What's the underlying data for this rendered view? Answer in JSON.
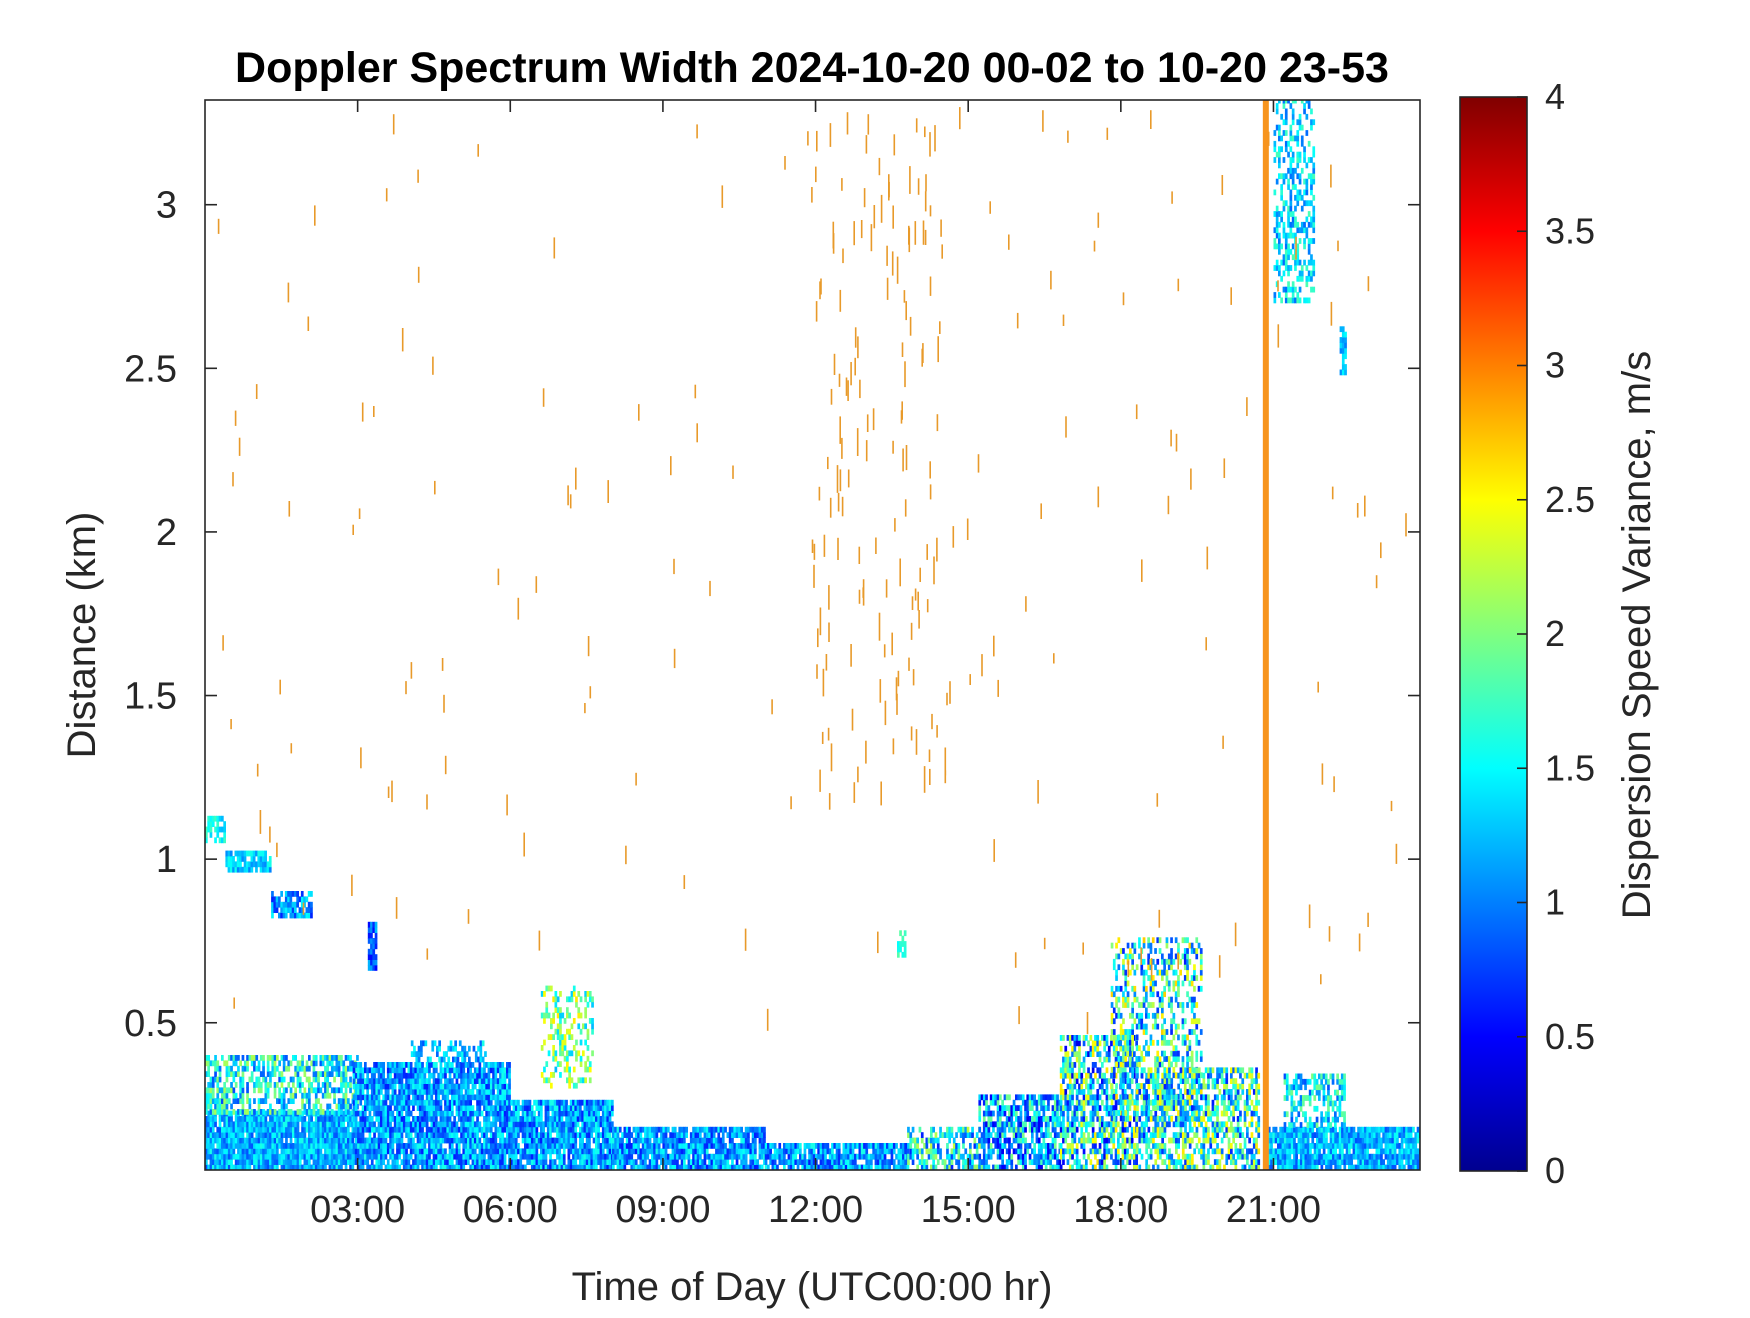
{
  "chart_data": {
    "type": "heatmap",
    "title": "Doppler Spectrum Width 2024-10-20 00-02 to 10-20 23-53",
    "xlabel": "Time of Day (UTC00:00 hr)",
    "ylabel": "Distance (km)",
    "xlim_hours": [
      0.0,
      23.88
    ],
    "ylim_km": [
      0.05,
      3.32
    ],
    "x_ticks": [
      {
        "hour": 3,
        "label": "03:00"
      },
      {
        "hour": 6,
        "label": "06:00"
      },
      {
        "hour": 9,
        "label": "09:00"
      },
      {
        "hour": 12,
        "label": "12:00"
      },
      {
        "hour": 15,
        "label": "15:00"
      },
      {
        "hour": 18,
        "label": "18:00"
      },
      {
        "hour": 21,
        "label": "21:00"
      }
    ],
    "y_ticks": [
      {
        "value": 0.5,
        "label": "0.5"
      },
      {
        "value": 1,
        "label": "1"
      },
      {
        "value": 1.5,
        "label": "1.5"
      },
      {
        "value": 2,
        "label": "2"
      },
      {
        "value": 2.5,
        "label": "2.5"
      },
      {
        "value": 3,
        "label": "3"
      }
    ],
    "colorbar": {
      "label": "Dispersion Speed Variance, m/s",
      "range": [
        0,
        4
      ],
      "colormap": "jet",
      "ticks": [
        {
          "value": 0,
          "label": "0"
        },
        {
          "value": 0.5,
          "label": "0.5"
        },
        {
          "value": 1,
          "label": "1"
        },
        {
          "value": 1.5,
          "label": "1.5"
        },
        {
          "value": 2,
          "label": "2"
        },
        {
          "value": 2.5,
          "label": "2.5"
        },
        {
          "value": 3,
          "label": "3"
        },
        {
          "value": 3.5,
          "label": "3.5"
        },
        {
          "value": 4,
          "label": "4"
        }
      ]
    },
    "marker_line": {
      "hour": 20.85,
      "color": "#f7941d"
    },
    "echo_regions": [
      {
        "t0": 0.0,
        "t1": 2.9,
        "h0": 0.05,
        "h1": 0.22,
        "dens": 0.95,
        "vmin": 0.8,
        "vmax": 1.6
      },
      {
        "t0": 0.0,
        "t1": 3.0,
        "h0": 0.22,
        "h1": 0.4,
        "dens": 0.6,
        "vmin": 0.8,
        "vmax": 2.2
      },
      {
        "t0": 2.9,
        "t1": 6.0,
        "h0": 0.05,
        "h1": 0.38,
        "dens": 0.9,
        "vmin": 0.6,
        "vmax": 1.6
      },
      {
        "t0": 4.0,
        "t1": 5.5,
        "h0": 0.38,
        "h1": 0.43,
        "dens": 0.5,
        "vmin": 0.8,
        "vmax": 1.6
      },
      {
        "t0": 6.0,
        "t1": 8.0,
        "h0": 0.05,
        "h1": 0.25,
        "dens": 0.9,
        "vmin": 0.6,
        "vmax": 1.6
      },
      {
        "t0": 8.0,
        "t1": 11.0,
        "h0": 0.05,
        "h1": 0.18,
        "dens": 0.9,
        "vmin": 0.6,
        "vmax": 1.6
      },
      {
        "t0": 11.0,
        "t1": 13.8,
        "h0": 0.05,
        "h1": 0.12,
        "dens": 0.85,
        "vmin": 0.6,
        "vmax": 1.6
      },
      {
        "t0": 13.8,
        "t1": 15.2,
        "h0": 0.05,
        "h1": 0.17,
        "dens": 0.65,
        "vmin": 0.6,
        "vmax": 2.3
      },
      {
        "t0": 15.2,
        "t1": 16.8,
        "h0": 0.05,
        "h1": 0.28,
        "dens": 0.7,
        "vmin": 0.4,
        "vmax": 2.0
      },
      {
        "t0": 16.8,
        "t1": 18.3,
        "h0": 0.05,
        "h1": 0.45,
        "dens": 0.65,
        "vmin": 0.4,
        "vmax": 2.6
      },
      {
        "t0": 17.8,
        "t1": 19.6,
        "h0": 0.2,
        "h1": 0.75,
        "dens": 0.45,
        "vmin": 0.6,
        "vmax": 2.7
      },
      {
        "t0": 18.3,
        "t1": 20.7,
        "h0": 0.05,
        "h1": 0.35,
        "dens": 0.6,
        "vmin": 0.6,
        "vmax": 2.6
      },
      {
        "t0": 20.8,
        "t1": 23.88,
        "h0": 0.05,
        "h1": 0.18,
        "dens": 0.9,
        "vmin": 0.8,
        "vmax": 1.6
      },
      {
        "t0": 21.2,
        "t1": 22.4,
        "h0": 0.18,
        "h1": 0.33,
        "dens": 0.55,
        "vmin": 0.8,
        "vmax": 2.0
      },
      {
        "t0": 6.6,
        "t1": 7.6,
        "h0": 0.3,
        "h1": 0.6,
        "dens": 0.35,
        "vmin": 1.2,
        "vmax": 2.6
      },
      {
        "t0": 0.0,
        "t1": 0.4,
        "h0": 1.05,
        "h1": 1.12,
        "dens": 0.7,
        "vmin": 1.2,
        "vmax": 1.8
      },
      {
        "t0": 0.4,
        "t1": 1.3,
        "h0": 0.96,
        "h1": 1.02,
        "dens": 0.8,
        "vmin": 1.0,
        "vmax": 1.6
      },
      {
        "t0": 1.3,
        "t1": 2.1,
        "h0": 0.82,
        "h1": 0.9,
        "dens": 0.7,
        "vmin": 0.6,
        "vmax": 1.5
      },
      {
        "t0": 3.2,
        "t1": 3.35,
        "h0": 0.66,
        "h1": 0.8,
        "dens": 0.8,
        "vmin": 0.5,
        "vmax": 1.3
      },
      {
        "t0": 13.6,
        "t1": 13.75,
        "h0": 0.7,
        "h1": 0.78,
        "dens": 0.6,
        "vmin": 1.5,
        "vmax": 2.0
      },
      {
        "t0": 21.0,
        "t1": 21.8,
        "h0": 2.7,
        "h1": 3.32,
        "dens": 0.45,
        "vmin": 0.9,
        "vmax": 1.8
      },
      {
        "t0": 22.3,
        "t1": 22.4,
        "h0": 2.48,
        "h1": 2.62,
        "dens": 0.8,
        "vmin": 1.0,
        "vmax": 1.5
      }
    ],
    "noise_specks": {
      "value": 3.0,
      "dominant_color": "#e89a2a"
    }
  }
}
